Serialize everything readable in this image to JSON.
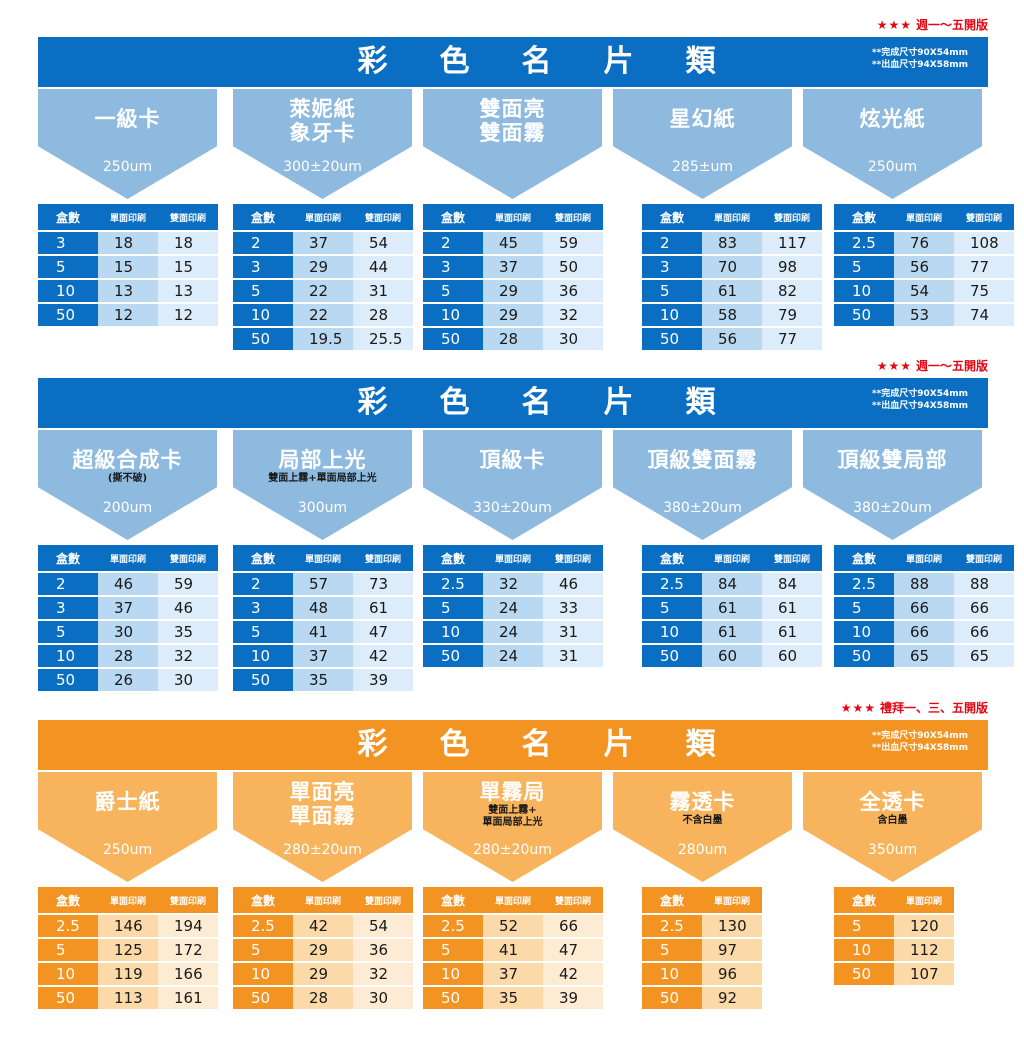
{
  "colors": {
    "blue_bar": "#0a6fc2",
    "blue_arrow": "#8ebadf",
    "blue_head": "#0a6fc2",
    "blue_cell_mid": "#b9d8f1",
    "blue_cell_light": "#dcecfa",
    "orange_bar": "#f39321",
    "orange_arrow": "#f7b45c",
    "orange_head": "#f39321",
    "orange_cell_mid": "#fcd9a9",
    "orange_cell_light": "#fdebd3",
    "note_red": "#e30613"
  },
  "sections": [
    {
      "theme": "blue",
      "note_stars": "★★★",
      "note_text": "週一～五開版",
      "title_chars": [
        "彩",
        "色",
        "名",
        "片",
        "類"
      ],
      "size_line1": "**完成尺寸90X54mm",
      "size_line2": "**出血尺寸94X58mm",
      "papers": [
        {
          "name": "一級卡",
          "thickness": "250um"
        },
        {
          "name": "萊妮紙\n象牙卡",
          "thickness": "300±20um"
        },
        {
          "name": "雙面亮\n雙面霧",
          "thickness": ""
        },
        {
          "name": "星幻紙",
          "thickness": "285±um"
        },
        {
          "name": "炫光紙",
          "thickness": "250um"
        }
      ],
      "tables": [
        {
          "headers": [
            "盒數",
            "單面印刷",
            "雙面印刷"
          ],
          "rows": [
            [
              "3",
              "18",
              "18"
            ],
            [
              "5",
              "15",
              "15"
            ],
            [
              "10",
              "13",
              "13"
            ],
            [
              "50",
              "12",
              "12"
            ]
          ]
        },
        {
          "headers": [
            "盒數",
            "單面印刷",
            "雙面印刷"
          ],
          "rows": [
            [
              "2",
              "37",
              "54"
            ],
            [
              "3",
              "29",
              "44"
            ],
            [
              "5",
              "22",
              "31"
            ],
            [
              "10",
              "22",
              "28"
            ],
            [
              "50",
              "19.5",
              "25.5"
            ]
          ]
        },
        {
          "headers": [
            "盒數",
            "單面印刷",
            "雙面印刷"
          ],
          "rows": [
            [
              "2",
              "45",
              "59"
            ],
            [
              "3",
              "37",
              "50"
            ],
            [
              "5",
              "29",
              "36"
            ],
            [
              "10",
              "29",
              "32"
            ],
            [
              "50",
              "28",
              "30"
            ]
          ]
        },
        {
          "headers": [
            "盒數",
            "單面印刷",
            "雙面印刷"
          ],
          "rows": [
            [
              "2",
              "83",
              "117"
            ],
            [
              "3",
              "70",
              "98"
            ],
            [
              "5",
              "61",
              "82"
            ],
            [
              "10",
              "58",
              "79"
            ],
            [
              "50",
              "56",
              "77"
            ]
          ]
        },
        {
          "headers": [
            "盒數",
            "單面印刷",
            "雙面印刷"
          ],
          "rows": [
            [
              "2.5",
              "76",
              "108"
            ],
            [
              "5",
              "56",
              "77"
            ],
            [
              "10",
              "54",
              "75"
            ],
            [
              "50",
              "53",
              "74"
            ]
          ]
        }
      ]
    },
    {
      "theme": "blue",
      "note_stars": "★★★",
      "note_text": "週一～五開版",
      "title_chars": [
        "彩",
        "色",
        "名",
        "片",
        "類"
      ],
      "size_line1": "**完成尺寸90X54mm",
      "size_line2": "**出血尺寸94X58mm",
      "papers": [
        {
          "name": "超級合成卡",
          "sub": "(撕不破)",
          "thickness": "200um"
        },
        {
          "name": "局部上光",
          "sub": "雙面上霧+單面局部上光",
          "thickness": "300um"
        },
        {
          "name": "頂級卡",
          "thickness": "330±20um"
        },
        {
          "name": "頂級雙面霧",
          "thickness": "380±20um"
        },
        {
          "name": "頂級雙局部",
          "thickness": "380±20um"
        }
      ],
      "tables": [
        {
          "headers": [
            "盒數",
            "單面印刷",
            "雙面印刷"
          ],
          "rows": [
            [
              "2",
              "46",
              "59"
            ],
            [
              "3",
              "37",
              "46"
            ],
            [
              "5",
              "30",
              "35"
            ],
            [
              "10",
              "28",
              "32"
            ],
            [
              "50",
              "26",
              "30"
            ]
          ]
        },
        {
          "headers": [
            "盒數",
            "單面印刷",
            "雙面印刷"
          ],
          "rows": [
            [
              "2",
              "57",
              "73"
            ],
            [
              "3",
              "48",
              "61"
            ],
            [
              "5",
              "41",
              "47"
            ],
            [
              "10",
              "37",
              "42"
            ],
            [
              "50",
              "35",
              "39"
            ]
          ]
        },
        {
          "headers": [
            "盒數",
            "單面印刷",
            "雙面印刷"
          ],
          "rows": [
            [
              "2.5",
              "32",
              "46"
            ],
            [
              "5",
              "24",
              "33"
            ],
            [
              "10",
              "24",
              "31"
            ],
            [
              "50",
              "24",
              "31"
            ]
          ]
        },
        {
          "headers": [
            "盒數",
            "單面印刷",
            "雙面印刷"
          ],
          "rows": [
            [
              "2.5",
              "84",
              "84"
            ],
            [
              "5",
              "61",
              "61"
            ],
            [
              "10",
              "61",
              "61"
            ],
            [
              "50",
              "60",
              "60"
            ]
          ]
        },
        {
          "headers": [
            "盒數",
            "單面印刷",
            "雙面印刷"
          ],
          "rows": [
            [
              "2.5",
              "88",
              "88"
            ],
            [
              "5",
              "66",
              "66"
            ],
            [
              "10",
              "66",
              "66"
            ],
            [
              "50",
              "65",
              "65"
            ]
          ]
        }
      ]
    },
    {
      "theme": "orange",
      "note_stars": "★★★",
      "note_text": "禮拜一、三、五開版",
      "title_chars": [
        "彩",
        "色",
        "名",
        "片",
        "類"
      ],
      "size_line1": "**完成尺寸90X54mm",
      "size_line2": "**出血尺寸94X58mm",
      "papers": [
        {
          "name": "爵士紙",
          "thickness": "250um"
        },
        {
          "name": "單面亮\n單面霧",
          "thickness": "280±20um"
        },
        {
          "name": "單霧局",
          "sub": "雙面上霧+\n單面局部上光",
          "thickness": "280±20um"
        },
        {
          "name": "霧透卡",
          "sub": "不含白墨",
          "thickness": "280um"
        },
        {
          "name": "全透卡",
          "sub": "含白墨",
          "thickness": "350um"
        }
      ],
      "tables": [
        {
          "headers": [
            "盒數",
            "單面印刷",
            "雙面印刷"
          ],
          "rows": [
            [
              "2.5",
              "146",
              "194"
            ],
            [
              "5",
              "125",
              "172"
            ],
            [
              "10",
              "119",
              "166"
            ],
            [
              "50",
              "113",
              "161"
            ]
          ]
        },
        {
          "headers": [
            "盒數",
            "單面印刷",
            "雙面印刷"
          ],
          "rows": [
            [
              "2.5",
              "42",
              "54"
            ],
            [
              "5",
              "29",
              "36"
            ],
            [
              "10",
              "29",
              "32"
            ],
            [
              "50",
              "28",
              "30"
            ]
          ]
        },
        {
          "headers": [
            "盒數",
            "單面印刷",
            "雙面印刷"
          ],
          "rows": [
            [
              "2.5",
              "52",
              "66"
            ],
            [
              "5",
              "41",
              "47"
            ],
            [
              "10",
              "37",
              "42"
            ],
            [
              "50",
              "35",
              "39"
            ]
          ]
        },
        {
          "headers": [
            "盒數",
            "單面印刷"
          ],
          "rows": [
            [
              "2.5",
              "130"
            ],
            [
              "5",
              "97"
            ],
            [
              "10",
              "96"
            ],
            [
              "50",
              "92"
            ]
          ]
        },
        {
          "headers": [
            "盒數",
            "單面印刷"
          ],
          "rows": [
            [
              "5",
              "120"
            ],
            [
              "10",
              "112"
            ],
            [
              "50",
              "107"
            ]
          ]
        }
      ]
    }
  ]
}
